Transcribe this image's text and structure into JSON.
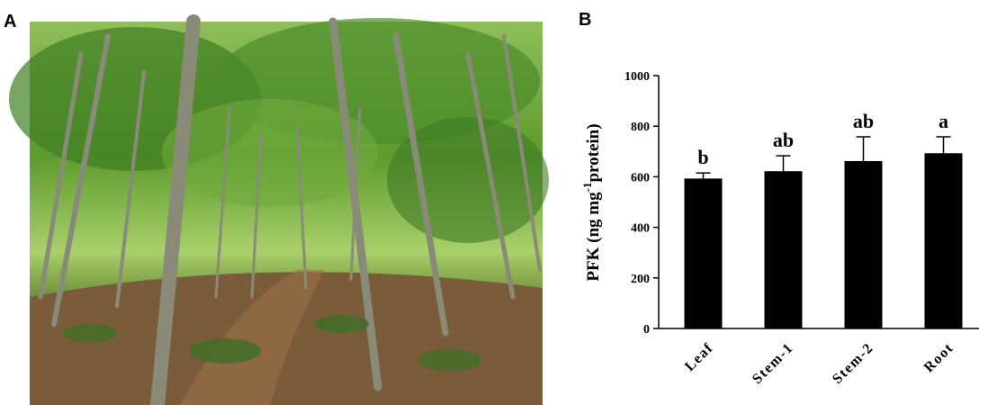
{
  "panel_labels": [
    "A",
    "B"
  ],
  "chart_data": {
    "type": "bar",
    "ylabel": "PFK (ng mg",
    "ylabel_superscript": "-1",
    "ylabel_end": "protein)",
    "categories": [
      "Leaf",
      "Stem-1",
      "Stem-2",
      "Root"
    ],
    "values": [
      593,
      622,
      662,
      693
    ],
    "errors": [
      22,
      61,
      96,
      65
    ],
    "annotations": [
      "b",
      "ab",
      "ab",
      "a"
    ],
    "color": "#000000",
    "ylim": [
      0,
      1000
    ],
    "yticks": [
      0,
      200,
      400,
      600,
      800,
      1000
    ],
    "grid": false
  }
}
